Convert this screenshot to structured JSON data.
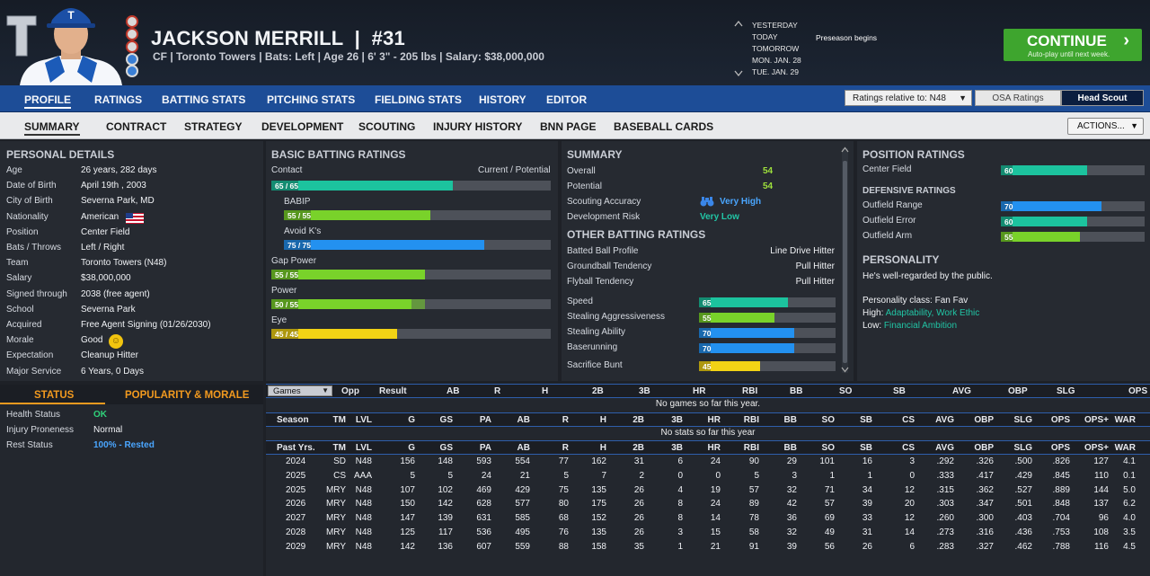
{
  "header": {
    "player_name": "JACKSON MERRILL",
    "number": "#31",
    "position": "CF",
    "team": "Toronto Towers",
    "bats": "Bats: Left",
    "age": "Age 26",
    "height_weight": "6' 3\" - 205 lbs",
    "salary": "Salary: $38,000,000",
    "subtitle": "CF | Toronto Towers | Bats: Left | Age 26 | 6' 3\" - 205 lbs | Salary: $38,000,000"
  },
  "date_nav": {
    "dates": [
      "YESTERDAY",
      "TODAY",
      "TOMORROW",
      "MON. JAN. 28",
      "TUE. JAN. 29"
    ],
    "event": "Preseason begins"
  },
  "continue": {
    "label": "CONTINUE",
    "sub": "Auto-play until next week."
  },
  "main_tabs": [
    "PROFILE",
    "RATINGS",
    "BATTING STATS",
    "PITCHING STATS",
    "FIELDING STATS",
    "HISTORY",
    "EDITOR"
  ],
  "ratings_relative": "Ratings relative to: N48",
  "osa_label": "OSA Ratings",
  "scout_label": "Head Scout",
  "sub_tabs": [
    "SUMMARY",
    "CONTRACT",
    "STRATEGY",
    "DEVELOPMENT",
    "SCOUTING",
    "INJURY HISTORY",
    "BNN PAGE",
    "BASEBALL CARDS"
  ],
  "actions_label": "ACTIONS...",
  "personal": {
    "title": "PERSONAL DETAILS",
    "rows": [
      {
        "label": "Age",
        "value": "26 years, 282 days"
      },
      {
        "label": "Date of Birth",
        "value": "April 19th , 2003"
      },
      {
        "label": "City of Birth",
        "value": "Severna Park, MD"
      },
      {
        "label": "Nationality",
        "value": "American"
      },
      {
        "label": "Position",
        "value": "Center Field"
      },
      {
        "label": "Bats / Throws",
        "value": "Left / Right"
      },
      {
        "label": "Team",
        "value": "Toronto Towers (N48)"
      },
      {
        "label": "Salary",
        "value": "$38,000,000"
      },
      {
        "label": "Signed through",
        "value": "2038 (free agent)"
      },
      {
        "label": "School",
        "value": "Severna Park"
      },
      {
        "label": "Acquired",
        "value": "Free Agent Signing (01/26/2030)"
      },
      {
        "label": "Morale",
        "value": "Good"
      },
      {
        "label": "Expectation",
        "value": "Cleanup Hitter"
      },
      {
        "label": "Major Service",
        "value": "6 Years, 0 Days"
      }
    ]
  },
  "status": {
    "tab_status": "STATUS",
    "tab_popularity": "POPULARITY & MORALE",
    "rows": [
      {
        "label": "Health Status",
        "value": "OK"
      },
      {
        "label": "Injury Proneness",
        "value": "Normal"
      },
      {
        "label": "Rest Status",
        "value": "100% - Rested"
      }
    ]
  },
  "batting": {
    "title": "BASIC BATTING RATINGS",
    "contact_label": "Contact",
    "cur_pot_label": "Current / Potential",
    "bars": [
      {
        "label": "",
        "text": "65 / 65",
        "current": 65,
        "potential": 65,
        "color": "#1cc39e"
      },
      {
        "label": "BABIP",
        "text": "55 / 55",
        "current": 55,
        "potential": 55,
        "color": "#79d22a"
      },
      {
        "label": "Avoid K's",
        "text": "75 / 75",
        "current": 75,
        "potential": 75,
        "color": "#2391f0"
      },
      {
        "label": "Gap Power",
        "text": "55 / 55",
        "current": 55,
        "potential": 55,
        "color": "#79d22a"
      },
      {
        "label": "Power",
        "text": "50 / 55",
        "current": 50,
        "potential": 55,
        "color": "#79d22a"
      },
      {
        "label": "Eye",
        "text": "45 / 45",
        "current": 45,
        "potential": 45,
        "color": "#f2d315"
      }
    ]
  },
  "summary": {
    "title": "SUMMARY",
    "rows": [
      {
        "label": "Overall",
        "value": "54"
      },
      {
        "label": "Potential",
        "value": "54"
      },
      {
        "label": "Scouting Accuracy",
        "value": "Very High"
      },
      {
        "label": "Development Risk",
        "value": "Very Low"
      }
    ],
    "other_title": "OTHER BATTING RATINGS",
    "other_rows": [
      {
        "label": "Batted Ball Profile",
        "value": "Line Drive Hitter"
      },
      {
        "label": "Groundball Tendency",
        "value": "Pull Hitter"
      },
      {
        "label": "Flyball Tendency",
        "value": "Pull Hitter"
      }
    ],
    "run_bars": [
      {
        "label": "Speed",
        "value": 65,
        "text": "65",
        "color": "#1cc39e"
      },
      {
        "label": "Stealing Aggressiveness",
        "value": 55,
        "text": "55",
        "color": "#79d22a"
      },
      {
        "label": "Stealing Ability",
        "value": 70,
        "text": "70",
        "color": "#2391f0"
      },
      {
        "label": "Baserunning",
        "value": 70,
        "text": "70",
        "color": "#2391f0"
      },
      {
        "label": "Sacrifice Bunt",
        "value": 45,
        "text": "45",
        "color": "#f2d315"
      }
    ]
  },
  "position_ratings": {
    "title": "POSITION RATINGS",
    "cf": {
      "label": "Center Field",
      "value": 60,
      "text": "60",
      "color": "#1cc39e"
    },
    "defensive_title": "DEFENSIVE RATINGS",
    "def_bars": [
      {
        "label": "Outfield Range",
        "value": 70,
        "text": "70",
        "color": "#2391f0"
      },
      {
        "label": "Outfield Error",
        "value": 60,
        "text": "60",
        "color": "#1cc39e"
      },
      {
        "label": "Outfield Arm",
        "value": 55,
        "text": "55",
        "color": "#79d22a"
      }
    ]
  },
  "personality": {
    "title": "PERSONALITY",
    "desc": "He's well-regarded by the public.",
    "class_line": "Personality class: Fan Fav",
    "high_label": "High:",
    "high_value": "Adaptability, Work Ethic",
    "low_label": "Low:",
    "low_value": "Financial Ambition"
  },
  "games_table": {
    "select": "Games",
    "headers": [
      "Opp",
      "Result",
      "AB",
      "R",
      "H",
      "2B",
      "3B",
      "HR",
      "RBI",
      "BB",
      "SO",
      "SB",
      "AVG",
      "OBP",
      "SLG",
      "OPS"
    ],
    "empty_msg": "No games so far this year."
  },
  "season_table": {
    "headers": [
      "Season",
      "TM",
      "LVL",
      "G",
      "GS",
      "PA",
      "AB",
      "R",
      "H",
      "2B",
      "3B",
      "HR",
      "RBI",
      "BB",
      "SO",
      "SB",
      "CS",
      "AVG",
      "OBP",
      "SLG",
      "OPS",
      "OPS+",
      "WAR"
    ],
    "empty_msg": "No stats so far this year"
  },
  "past_table": {
    "headers": [
      "Past Yrs.",
      "TM",
      "LVL",
      "G",
      "GS",
      "PA",
      "AB",
      "R",
      "H",
      "2B",
      "3B",
      "HR",
      "RBI",
      "BB",
      "SO",
      "SB",
      "CS",
      "AVG",
      "OBP",
      "SLG",
      "OPS",
      "OPS+",
      "WAR"
    ],
    "rows": [
      [
        "2024",
        "SD",
        "N48",
        "156",
        "148",
        "593",
        "554",
        "77",
        "162",
        "31",
        "6",
        "24",
        "90",
        "29",
        "101",
        "16",
        "3",
        ".292",
        ".326",
        ".500",
        ".826",
        "127",
        "4.1"
      ],
      [
        "2025",
        "CS",
        "AAA",
        "5",
        "5",
        "24",
        "21",
        "5",
        "7",
        "2",
        "0",
        "0",
        "5",
        "3",
        "1",
        "1",
        "0",
        ".333",
        ".417",
        ".429",
        ".845",
        "110",
        "0.1"
      ],
      [
        "2025",
        "MRY",
        "N48",
        "107",
        "102",
        "469",
        "429",
        "75",
        "135",
        "26",
        "4",
        "19",
        "57",
        "32",
        "71",
        "34",
        "12",
        ".315",
        ".362",
        ".527",
        ".889",
        "144",
        "5.0"
      ],
      [
        "2026",
        "MRY",
        "N48",
        "150",
        "142",
        "628",
        "577",
        "80",
        "175",
        "26",
        "8",
        "24",
        "89",
        "42",
        "57",
        "39",
        "20",
        ".303",
        ".347",
        ".501",
        ".848",
        "137",
        "6.2"
      ],
      [
        "2027",
        "MRY",
        "N48",
        "147",
        "139",
        "631",
        "585",
        "68",
        "152",
        "26",
        "8",
        "14",
        "78",
        "36",
        "69",
        "33",
        "12",
        ".260",
        ".300",
        ".403",
        ".704",
        "96",
        "4.0"
      ],
      [
        "2028",
        "MRY",
        "N48",
        "125",
        "117",
        "536",
        "495",
        "76",
        "135",
        "26",
        "3",
        "15",
        "58",
        "32",
        "49",
        "31",
        "14",
        ".273",
        ".316",
        ".436",
        ".753",
        "108",
        "3.5"
      ],
      [
        "2029",
        "MRY",
        "N48",
        "142",
        "136",
        "607",
        "559",
        "88",
        "158",
        "35",
        "1",
        "21",
        "91",
        "39",
        "56",
        "26",
        "6",
        ".283",
        ".327",
        ".462",
        ".788",
        "116",
        "4.5"
      ]
    ]
  },
  "colors": {
    "accent_blue": "#1d4d97",
    "continue_green": "#3ea52e",
    "teal": "#1cc39e",
    "green": "#79d22a",
    "blue": "#2391f0",
    "yellow": "#f2d315",
    "orange_tab": "#f29a1f"
  },
  "icons": [
    "team-logo-icon",
    "flag-usa-icon",
    "smiley-icon",
    "binoculars-icon",
    "chevron-right-icon",
    "dropdown-arrow-icon",
    "scroll-up-icon",
    "scroll-down-icon"
  ]
}
